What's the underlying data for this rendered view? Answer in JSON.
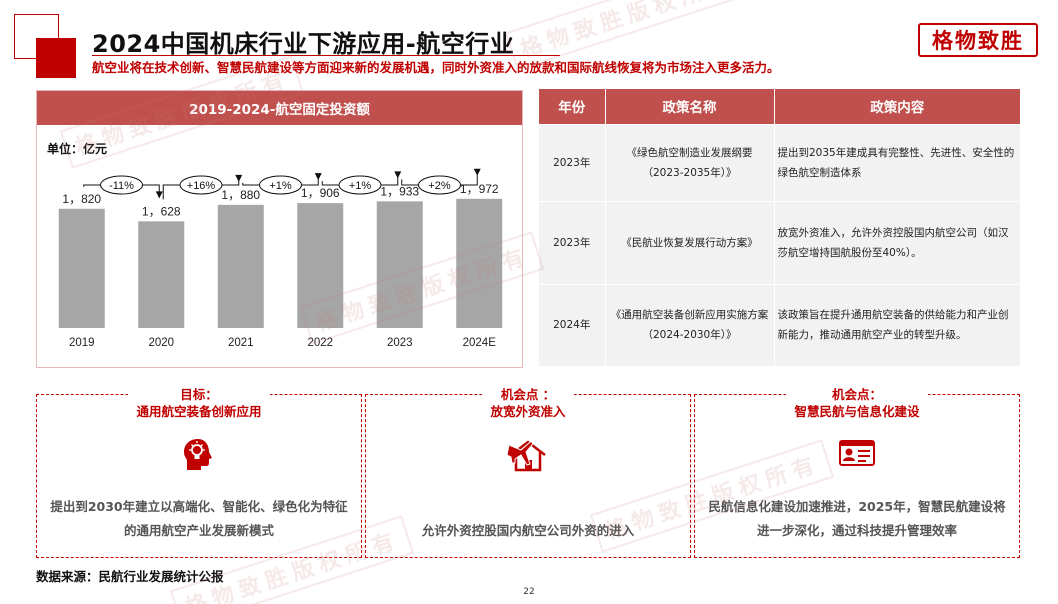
{
  "header": {
    "title": "2024中国机床行业下游应用-航空行业",
    "subtitle": "航空业将在技术创新、智慧民航建设等方面迎来新的发展机遇，同时外资准入的放款和国际航线恢复将为市场注入更多活力。",
    "brand": "格物致胜"
  },
  "chart_panel": {
    "header": "2019-2024-航空固定投资额",
    "unit": "单位：亿元"
  },
  "chart_data": {
    "type": "bar",
    "title": "2019-2024-航空固定投资额",
    "unit": "单位：亿元",
    "categories": [
      "2019",
      "2020",
      "2021",
      "2022",
      "2023",
      "2024E"
    ],
    "values": [
      1820,
      1628,
      1880,
      1906,
      1933,
      1972
    ],
    "value_labels": [
      "1，820",
      "1，628",
      "1，880",
      "1，906",
      "1，933",
      "1，972"
    ],
    "growth_labels": [
      "-11%",
      "+16%",
      "+1%",
      "+1%",
      "+2%"
    ],
    "color": "#a6a6a6",
    "ylim": [
      0,
      2900
    ],
    "grid": false
  },
  "table": {
    "headers": [
      "年份",
      "政策名称",
      "政策内容"
    ],
    "rows": [
      {
        "year": "2023年",
        "name": "《绿色航空制造业发展纲要（2023-2035年）》",
        "content": "提出到2035年建成具有完整性、先进性、安全性的绿色航空制造体系"
      },
      {
        "year": "2023年",
        "name": "《民航业恢复发展行动方案》",
        "content": "放宽外资准入，允许外资控股国内航空公司（如汉莎航空增持国航股份至40%）。"
      },
      {
        "year": "2024年",
        "name": "《通用航空装备创新应用实施方案（2024-2030年）》",
        "content": "该政策旨在提升通用航空装备的供给能力和产业创新能力，推动通用航空产业的转型升级。"
      }
    ]
  },
  "boxes": [
    {
      "title_line1": "目标：",
      "title_line2": "通用航空装备创新应用",
      "icon": "head-lightbulb-icon",
      "description": "提出到2030年建立以高端化、智能化、绿色化为特征的通用航空产业发展新模式"
    },
    {
      "title_line1": "机会点 ：",
      "title_line2": "放宽外资准入",
      "icon": "plane-house-icon",
      "description": "允许外资控股国内航空公司外资的进入"
    },
    {
      "title_line1": "机会点：",
      "title_line2": "智慧民航与信息化建设",
      "icon": "id-card-icon",
      "description": "民航信息化建设加速推进，2025年，智慧民航建设将进一步深化，通过科技提升管理效率"
    }
  ],
  "footer": {
    "source": "数据来源：民航行业发展统计公报",
    "page": "22"
  },
  "watermark": "格物致胜版权所有",
  "colors": {
    "accent": "#c00000",
    "header_bar": "#c0504d",
    "bar": "#a6a6a6",
    "table_cell": "#f2f2f2"
  }
}
